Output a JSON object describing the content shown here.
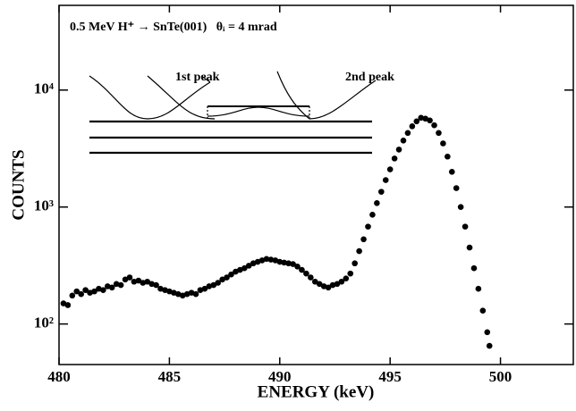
{
  "chart_data": {
    "type": "scatter",
    "title": "0.5 MeV H⁺ → SnTe(001)   θᵢ = 4 mrad",
    "annotations": [
      "1st peak",
      "2nd peak"
    ],
    "xlabel": "ENERGY (keV)",
    "ylabel": "COUNTS",
    "color": "#000000",
    "ylog": true,
    "xlim": [
      480,
      503.3
    ],
    "ylim": [
      45,
      53000
    ],
    "xticks": [
      480,
      485,
      490,
      495,
      500
    ],
    "yticks": [
      {
        "value": 100,
        "label": "10²"
      },
      {
        "value": 1000,
        "label": "10³"
      },
      {
        "value": 10000,
        "label": "10⁴"
      }
    ],
    "x": [
      480.2,
      480.4,
      480.6,
      480.8,
      481.0,
      481.2,
      481.4,
      481.6,
      481.8,
      482.0,
      482.2,
      482.4,
      482.6,
      482.8,
      483.0,
      483.2,
      483.4,
      483.6,
      483.8,
      484.0,
      484.2,
      484.4,
      484.6,
      484.8,
      485.0,
      485.2,
      485.4,
      485.6,
      485.8,
      486.0,
      486.2,
      486.4,
      486.6,
      486.8,
      487.0,
      487.2,
      487.4,
      487.6,
      487.8,
      488.0,
      488.2,
      488.4,
      488.6,
      488.8,
      489.0,
      489.2,
      489.4,
      489.6,
      489.8,
      490.0,
      490.2,
      490.4,
      490.6,
      490.8,
      491.0,
      491.2,
      491.4,
      491.6,
      491.8,
      492.0,
      492.2,
      492.4,
      492.6,
      492.8,
      493.0,
      493.2,
      493.4,
      493.6,
      493.8,
      494.0,
      494.2,
      494.4,
      494.6,
      494.8,
      495.0,
      495.2,
      495.4,
      495.6,
      495.8,
      496.0,
      496.2,
      496.4,
      496.6,
      496.8,
      497.0,
      497.2,
      497.4,
      497.6,
      497.8,
      498.0,
      498.2,
      498.4,
      498.6,
      498.8,
      499.0,
      499.2,
      499.4,
      499.5
    ],
    "values": [
      150,
      145,
      175,
      190,
      180,
      195,
      185,
      190,
      200,
      195,
      210,
      205,
      220,
      215,
      240,
      250,
      230,
      235,
      225,
      230,
      220,
      215,
      200,
      195,
      190,
      185,
      180,
      175,
      180,
      185,
      180,
      195,
      200,
      210,
      215,
      225,
      240,
      250,
      265,
      280,
      290,
      300,
      315,
      330,
      340,
      350,
      360,
      355,
      350,
      340,
      335,
      330,
      325,
      310,
      290,
      270,
      250,
      230,
      220,
      210,
      205,
      215,
      220,
      230,
      245,
      270,
      330,
      420,
      530,
      680,
      860,
      1080,
      1350,
      1700,
      2100,
      2600,
      3100,
      3700,
      4300,
      4900,
      5400,
      5800,
      5700,
      5500,
      5000,
      4300,
      3500,
      2700,
      2000,
      1450,
      1000,
      680,
      450,
      300,
      200,
      130,
      85,
      65
    ]
  }
}
